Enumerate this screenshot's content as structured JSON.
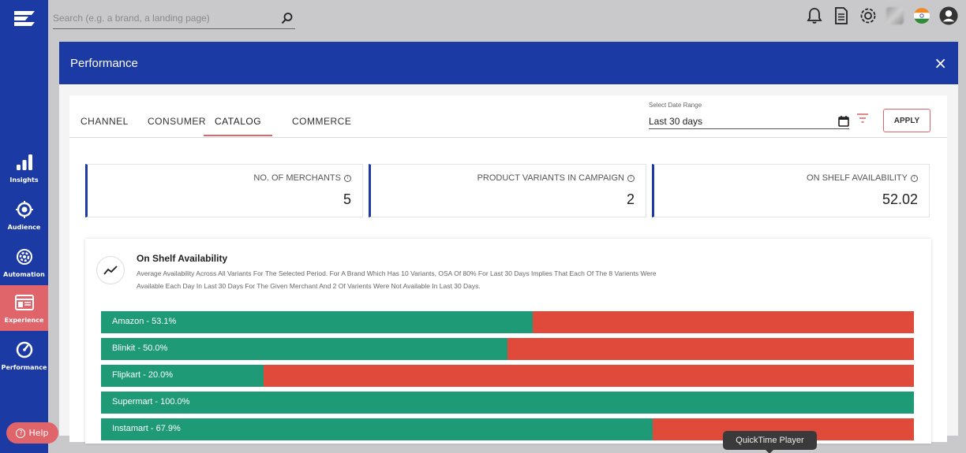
{
  "search": {
    "placeholder": "Search (e.g. a brand, a landing page)"
  },
  "sidebar": {
    "items": [
      {
        "label": "Insights",
        "icon": "bar-chart-icon"
      },
      {
        "label": "Audience",
        "icon": "target-icon"
      },
      {
        "label": "Automation",
        "icon": "gear-icon"
      },
      {
        "label": "Experience",
        "icon": "browser-icon",
        "active": true
      },
      {
        "label": "Performance",
        "icon": "speedometer-icon"
      }
    ]
  },
  "help": {
    "label": "Help"
  },
  "modal": {
    "title": "Performance",
    "close": "×"
  },
  "tabs": [
    {
      "label": "CHANNEL"
    },
    {
      "label": "CONSUMER"
    },
    {
      "label": "CATALOG",
      "active": true
    },
    {
      "label": "COMMERCE"
    }
  ],
  "date_range": {
    "label": "Select Date Range",
    "value": "Last 30 days"
  },
  "apply_label": "APPLY",
  "stats": [
    {
      "title": "NO. OF MERCHANTS",
      "value": "5"
    },
    {
      "title": "PRODUCT VARIANTS IN CAMPAIGN",
      "value": "2"
    },
    {
      "title": "ON SHELF AVAILABILITY",
      "value": "52.02"
    }
  ],
  "osa": {
    "title": "On Shelf Availability",
    "desc_line1": "Average Availability Across All Variants For The Selected Period. For A Brand Which Has 10 Variants, OSA Of 80% For Last 30 Days Implies That Each Of The 8 Varients Were",
    "desc_line2": "Available Each Day In Last 30 Days For The Given Merchant And 2 Of Varients Were Not Available In Last 30 Days."
  },
  "chart_data": {
    "type": "bar",
    "categories": [
      "Amazon",
      "Blinkit",
      "Flipkart",
      "Supermart",
      "Instamart"
    ],
    "values": [
      53.1,
      50.0,
      20.0,
      100.0,
      67.9
    ],
    "labels": [
      "Amazon - 53.1%",
      "Blinkit - 50.0%",
      "Flipkart - 20.0%",
      "Supermart - 100.0%",
      "Instamart - 67.9%"
    ],
    "ylim": [
      0,
      100
    ],
    "colors": {
      "available": "#1e9b76",
      "unavailable": "#e04a3b"
    }
  },
  "tooltip": {
    "text": "QuickTime Player"
  }
}
